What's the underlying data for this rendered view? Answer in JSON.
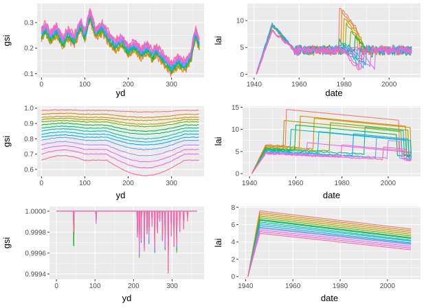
{
  "palette": [
    "#f8766d",
    "#e58700",
    "#c99800",
    "#a3a500",
    "#6bb100",
    "#00ba38",
    "#00bf7d",
    "#00c0af",
    "#00bcd8",
    "#00b0f6",
    "#619cff",
    "#b983ff",
    "#e76bf3",
    "#fd61d1",
    "#ff67a4"
  ],
  "panel_bg": "#ebebeb",
  "grid_major": "#ffffff",
  "chart_data": [
    {
      "id": "p1",
      "type": "line",
      "xlabel": "yd",
      "ylabel": "gsi",
      "xlim": [
        -10,
        375
      ],
      "ylim": [
        0.085,
        0.375
      ],
      "xticks": [
        0,
        100,
        200,
        300
      ],
      "xtick_labels": [
        "0",
        "100",
        "200",
        "300"
      ],
      "yticks": [
        0.1,
        0.2,
        0.3
      ],
      "ytick_labels": [
        "0.1",
        "0.2",
        "0.3"
      ],
      "grid": true,
      "series_count": 15,
      "series_names": [],
      "trend_x": [
        0,
        10,
        20,
        35,
        50,
        60,
        75,
        90,
        100,
        112,
        125,
        140,
        155,
        170,
        185,
        200,
        215,
        230,
        245,
        255,
        265,
        280,
        290,
        300,
        315,
        330,
        345,
        355,
        365
      ],
      "trend_y": [
        0.25,
        0.28,
        0.24,
        0.27,
        0.22,
        0.26,
        0.23,
        0.29,
        0.25,
        0.33,
        0.26,
        0.28,
        0.24,
        0.21,
        0.23,
        0.19,
        0.21,
        0.18,
        0.2,
        0.17,
        0.19,
        0.16,
        0.14,
        0.12,
        0.15,
        0.13,
        0.17,
        0.26,
        0.21
      ],
      "spread": 0.04
    },
    {
      "id": "p2",
      "type": "line",
      "xlabel": "date",
      "ylabel": "lai",
      "xlim": [
        1937,
        2014
      ],
      "ylim": [
        -0.6,
        13.2
      ],
      "xticks": [
        1940,
        1960,
        1980,
        2000
      ],
      "xtick_labels": [
        "1940",
        "1960",
        "1980",
        "2000"
      ],
      "yticks": [
        0,
        5,
        10
      ],
      "ytick_labels": [
        "0",
        "5",
        "10"
      ],
      "grid": true,
      "series_count": 15,
      "series_names": [],
      "rise_start": 1941,
      "rise_end": 1948,
      "plateau": 9.5,
      "settle": 4.5,
      "settle_year": 1958,
      "end": 2010,
      "jump_years": [
        1978,
        1979,
        1980,
        1981,
        1983,
        1985,
        1978,
        1980,
        1982,
        1979,
        1981,
        1984,
        1986,
        1979,
        1980
      ],
      "jump_levels": [
        12.5,
        11.5,
        10.5,
        9.5,
        8.0,
        7.0,
        6.5,
        6.0,
        5.5,
        5.5,
        5.0,
        5.0,
        4.8,
        4.5,
        4.5
      ]
    },
    {
      "id": "p3",
      "type": "line",
      "xlabel": "yd",
      "ylabel": "gsi",
      "xlim": [
        -10,
        375
      ],
      "ylim": [
        0.555,
        1.012
      ],
      "xticks": [
        0,
        100,
        200,
        300
      ],
      "xtick_labels": [
        "0",
        "100",
        "200",
        "300"
      ],
      "yticks": [
        0.6,
        0.7,
        0.8,
        0.9,
        1.0
      ],
      "ytick_labels": [
        "0.6",
        "0.7",
        "0.8",
        "0.9",
        "1.0"
      ],
      "grid": true,
      "series_count": 15,
      "series_names": [],
      "levels": [
        0.985,
        0.96,
        0.94,
        0.925,
        0.91,
        0.89,
        0.87,
        0.85,
        0.83,
        0.81,
        0.79,
        0.76,
        0.73,
        0.7,
        0.66
      ],
      "dip_depth": [
        0.01,
        0.02,
        0.02,
        0.03,
        0.03,
        0.04,
        0.04,
        0.05,
        0.05,
        0.05,
        0.06,
        0.07,
        0.08,
        0.09,
        0.1
      ]
    },
    {
      "id": "p4",
      "type": "line",
      "xlabel": "date",
      "ylabel": "lai",
      "xlim": [
        1937,
        2014
      ],
      "ylim": [
        -0.6,
        15.2
      ],
      "xticks": [
        1940,
        1960,
        1980,
        2000
      ],
      "xtick_labels": [
        "1940",
        "1960",
        "1980",
        "2000"
      ],
      "yticks": [
        0,
        5,
        10,
        15
      ],
      "ytick_labels": [
        "0",
        "5",
        "10",
        "15"
      ],
      "grid": true,
      "series_count": 15,
      "series_names": [],
      "rise_start": 1941,
      "rise_end": 1947,
      "end": 2010,
      "base": [
        6.5,
        6.3,
        6.1,
        5.9,
        5.8,
        5.6,
        5.5,
        5.3,
        5.2,
        5.0,
        4.9,
        4.8,
        4.7,
        4.6,
        4.5
      ],
      "jump_years": [
        1956,
        1962,
        1968,
        1955,
        1975,
        1960,
        1990,
        1958,
        1970,
        1985,
        1995,
        2000,
        1965,
        1980,
        1998
      ],
      "jump_levels": [
        14.5,
        13.0,
        12.5,
        12.0,
        11.5,
        11.0,
        10.5,
        10.0,
        9.5,
        9.0,
        8.5,
        7.5,
        7.0,
        6.5,
        6.0
      ],
      "drop_years": [
        2005,
        2008,
        2010,
        2006,
        2009,
        2004,
        2007,
        2008,
        2010,
        2009,
        2006,
        2005,
        2010,
        2007,
        2008
      ]
    },
    {
      "id": "p5",
      "type": "line",
      "xlabel": "yd",
      "ylabel": "gsi",
      "xlim": [
        -18,
        383
      ],
      "ylim": [
        0.99935,
        1.000045
      ],
      "xticks": [
        0,
        100,
        200,
        300
      ],
      "xtick_labels": [
        "0",
        "100",
        "200",
        "300"
      ],
      "yticks": [
        0.9994,
        0.9996,
        0.9998,
        1.0
      ],
      "ytick_labels": [
        "0.9994",
        "0.9996",
        "0.9998",
        "1.0000"
      ],
      "grid": true,
      "series_count": 15,
      "series_names": [],
      "dips_x": [
        45,
        103,
        210,
        215,
        220,
        228,
        235,
        240,
        248,
        255,
        262,
        268,
        275,
        282,
        290,
        298,
        305,
        312,
        320,
        330,
        340
      ],
      "dips_y": [
        0.99966,
        0.99988,
        0.99975,
        0.99955,
        0.9997,
        0.9996,
        0.99978,
        0.99968,
        0.99985,
        0.99958,
        0.99972,
        0.9999,
        0.9997,
        0.9996,
        0.9994,
        0.99975,
        0.99965,
        0.9996,
        0.9998,
        0.99975,
        0.9999
      ]
    },
    {
      "id": "p6",
      "type": "line",
      "xlabel": "date",
      "ylabel": "lai",
      "xlim": [
        1937,
        2014
      ],
      "ylim": [
        -0.3,
        8.1
      ],
      "xticks": [
        1940,
        1960,
        1980,
        2000
      ],
      "xtick_labels": [
        "1940",
        "1960",
        "1980",
        "2000"
      ],
      "yticks": [
        0,
        2,
        4,
        6,
        8
      ],
      "ytick_labels": [
        "0",
        "2",
        "4",
        "6",
        "8"
      ],
      "grid": true,
      "series_count": 15,
      "series_names": [],
      "rise_start": 1941,
      "end": 2010,
      "peaks": [
        7.6,
        7.4,
        7.2,
        7.0,
        6.8,
        6.6,
        6.5,
        6.3,
        6.1,
        5.9,
        5.7,
        5.6,
        5.4,
        5.2,
        5.0
      ],
      "ends": [
        5.5,
        5.3,
        5.1,
        4.9,
        4.7,
        4.5,
        4.4,
        4.2,
        4.1,
        3.9,
        3.8,
        3.7,
        3.5,
        3.3,
        3.1
      ]
    }
  ]
}
